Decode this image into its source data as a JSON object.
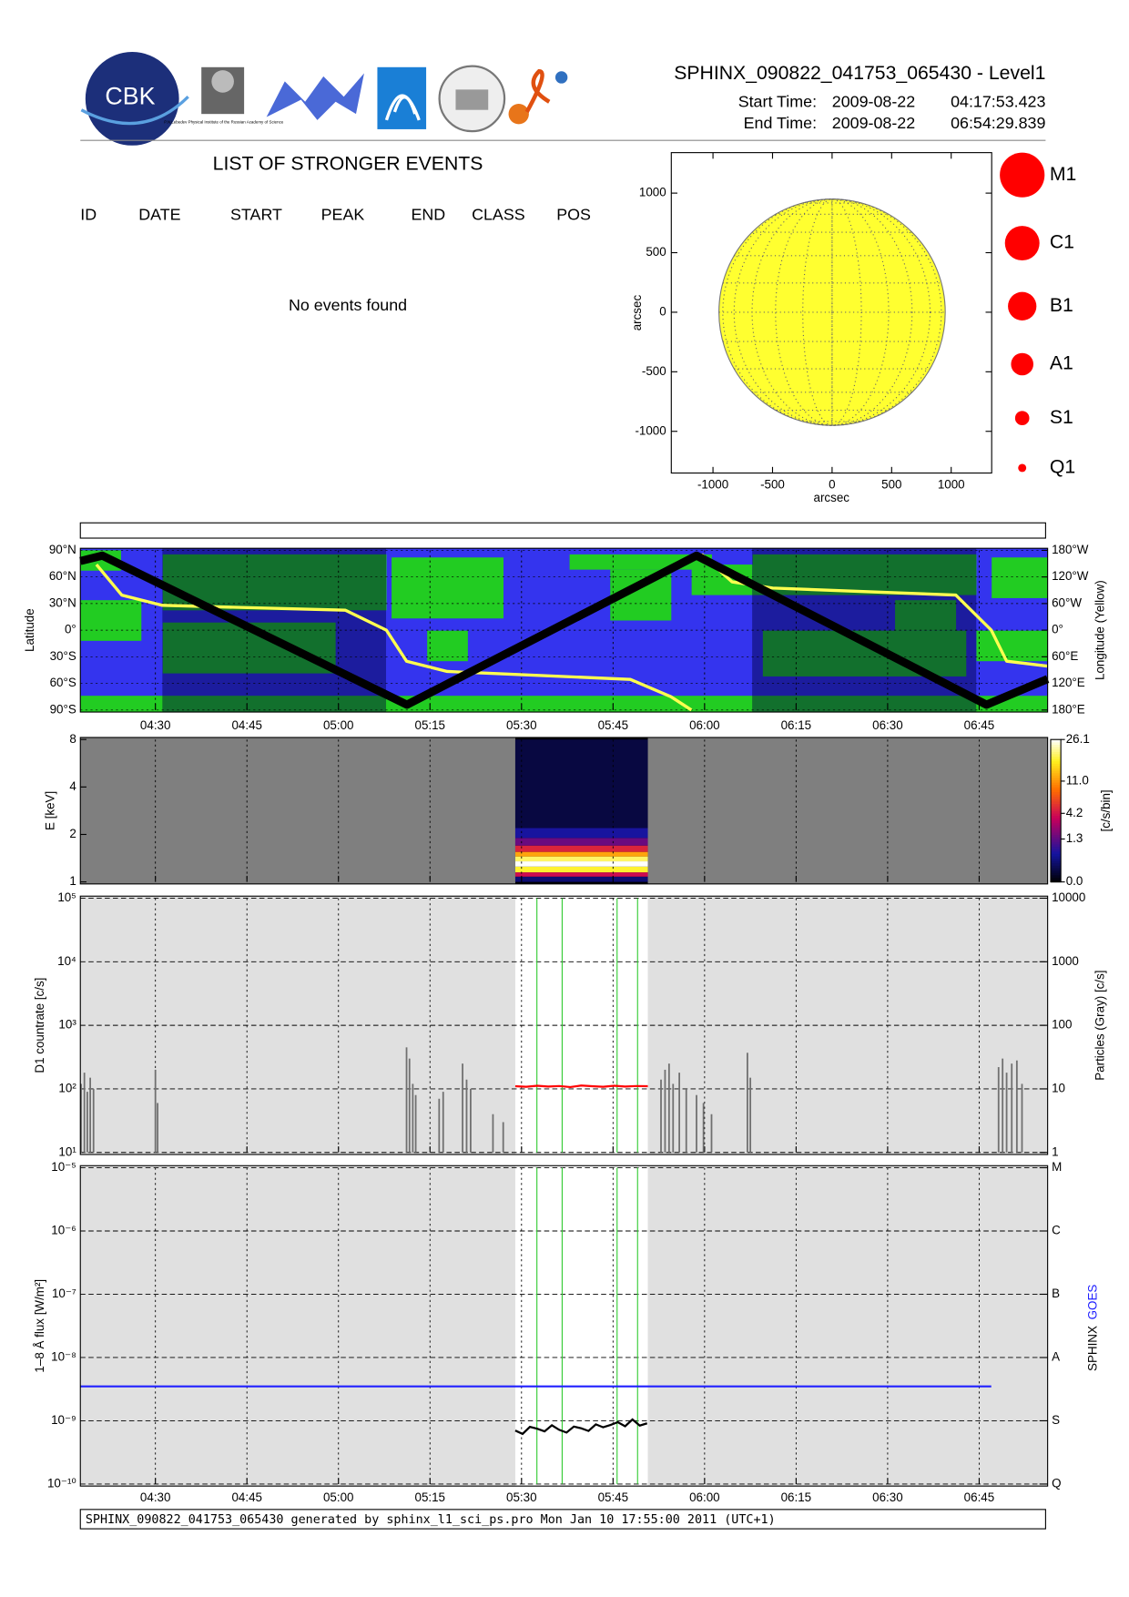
{
  "header": {
    "title": "SPHINX_090822_041753_065430 - Level1",
    "start_label": "Start Time:",
    "start_date": "2009-08-22",
    "start_time": "04:17:53.423",
    "end_label": "End Time:",
    "end_date": "2009-08-22",
    "end_time": "06:54:29.839",
    "logo_text": "CBK",
    "lebedev_caption": "P.N.Lebedev Physical Institute of the Russian Academy of Science"
  },
  "events": {
    "title": "LIST OF STRONGER EVENTS",
    "columns": [
      "ID",
      "DATE",
      "START",
      "PEAK",
      "END",
      "CLASS",
      "POS"
    ],
    "message": "No events found"
  },
  "footer": "SPHINX_090822_041753_065430 generated by sphinx_l1_sci_ps.pro Mon Jan 10 17:55:00 2011 (UTC+1)",
  "chart_data": [
    {
      "type": "solar_disk",
      "xlabel": "arcsec",
      "ylabel": "arcsec",
      "xlim": [
        -1350,
        1340
      ],
      "ylim": [
        -1350,
        1340
      ],
      "xticks": [
        -1000,
        -500,
        0,
        500,
        1000
      ],
      "yticks": [
        -1000,
        -500,
        0,
        500,
        1000
      ],
      "disk_radius": 950,
      "disk_color": "#ffff30",
      "legend": [
        "M1",
        "C1",
        "B1",
        "A1",
        "S1",
        "Q1"
      ],
      "legend_color": "#ff0000"
    },
    {
      "type": "orbit_map",
      "ylabel": "Latitude",
      "y2label": "Longitude (Yellow)",
      "xlim": [
        4.295,
        6.937
      ],
      "xticks": [
        {
          "value": 4.5,
          "label": "04:30"
        },
        {
          "value": 4.75,
          "label": "04:45"
        },
        {
          "value": 5,
          "label": "05:00"
        },
        {
          "value": 5.25,
          "label": "05:15"
        },
        {
          "value": 5.5,
          "label": "05:30"
        },
        {
          "value": 5.75,
          "label": "05:45"
        },
        {
          "value": 6,
          "label": "06:00"
        },
        {
          "value": 6.25,
          "label": "06:15"
        },
        {
          "value": 6.5,
          "label": "06:30"
        },
        {
          "value": 6.75,
          "label": "06:45"
        }
      ],
      "ylim": [
        -90,
        90
      ],
      "yticks": [
        {
          "value": -90,
          "label": "90°S"
        },
        {
          "value": -60,
          "label": "60°S"
        },
        {
          "value": -30,
          "label": "30°S"
        },
        {
          "value": 0,
          "label": "0°"
        },
        {
          "value": 30,
          "label": "30°N"
        },
        {
          "value": 60,
          "label": "60°N"
        },
        {
          "value": 90,
          "label": "90°N"
        }
      ],
      "y2lim": [
        -180,
        180
      ],
      "y2ticks": [
        {
          "value": -180,
          "label": "180°E"
        },
        {
          "value": -120,
          "label": "120°E"
        },
        {
          "value": -60,
          "label": "60°E"
        },
        {
          "value": 0,
          "label": "0°"
        },
        {
          "value": 60,
          "label": "60°W"
        },
        {
          "value": 120,
          "label": "120°W"
        },
        {
          "value": 180,
          "label": "180°W"
        }
      ],
      "shaded_intervals": [
        [
          4.519,
          5.13
        ],
        [
          6.13,
          6.742
        ]
      ],
      "series": [
        {
          "color": "#000000",
          "x": [
            4.295,
            4.355,
            5.187,
            5.978,
            6.77,
            6.937
          ],
          "values": [
            78,
            84,
            -84,
            84,
            -84,
            -55
          ]
        },
        {
          "color": "#ffff50",
          "axis": "y2",
          "x": [
            4.339,
            4.408,
            4.519,
            5.019,
            5.131,
            5.186,
            5.297,
            5.797,
            5.908,
            5.964,
            5.97,
            5.992,
            6.075,
            6.186,
            6.686,
            6.783,
            6.825,
            6.936
          ],
          "values": [
            148,
            79,
            56,
            45,
            0,
            -70,
            -93,
            -111,
            -150,
            -180,
            null,
            171,
            109,
            95,
            79,
            0,
            -70,
            -81
          ]
        }
      ]
    },
    {
      "type": "heatmap",
      "ylabel": "E [keV]",
      "ylog": true,
      "ylim": [
        1,
        8
      ],
      "yticks": [
        1,
        2,
        4,
        8
      ],
      "time_range": [
        5.483,
        5.845
      ],
      "energy_edges": [
        1,
        1.08,
        1.15,
        1.25,
        1.35,
        1.45,
        1.55,
        1.7,
        1.9,
        2.2,
        8
      ],
      "values": [
        0.2,
        4,
        18,
        26,
        20,
        12,
        5,
        1.5,
        0.5,
        0.05
      ],
      "colorbar_label": "[c/s/bin]",
      "clim": [
        0,
        26.1
      ],
      "cticks": [
        {
          "value": 0,
          "label": "0.0"
        },
        1.3,
        4.2,
        {
          "value": 11,
          "label": "11.0"
        },
        26.1
      ]
    },
    {
      "type": "line",
      "ylabel": "D1 countrate [c/s]",
      "y2label": "Particles (Gray) [c/s]",
      "ylog": true,
      "ylim": [
        10,
        100000
      ],
      "yticks": [
        {
          "value": 10,
          "label": "10¹"
        },
        {
          "value": 100,
          "label": "10²"
        },
        {
          "value": 1000,
          "label": "10³"
        },
        {
          "value": 10000,
          "label": "10⁴"
        },
        {
          "value": 100000,
          "label": "10⁵"
        }
      ],
      "y2lim": [
        1,
        10000
      ],
      "y2ticks": [
        1,
        10,
        100,
        1000,
        10000
      ],
      "data_interval": [
        5.483,
        5.845
      ],
      "event_markers": [
        5.542,
        5.611,
        5.761,
        5.817
      ],
      "series": [
        {
          "color": "#ff0000",
          "x": [
            5.483,
            5.513,
            5.543,
            5.573,
            5.603,
            5.633,
            5.663,
            5.693,
            5.723,
            5.753,
            5.783,
            5.813,
            5.845
          ],
          "values": [
            110,
            108,
            112,
            109,
            111,
            107,
            113,
            110,
            108,
            112,
            109,
            111,
            110
          ]
        },
        {
          "color": "#707070",
          "axis": "y2",
          "style": "bar",
          "x": [
            4.297,
            4.306,
            4.314,
            4.322,
            4.331,
            4.5,
            4.506,
            5.186,
            5.194,
            5.203,
            5.211,
            5.275,
            5.286,
            5.339,
            5.35,
            5.361,
            5.422,
            5.45,
            5.881,
            5.892,
            5.903,
            5.914,
            5.931,
            5.95,
            5.978,
            5.997,
            6.019,
            6.117,
            6.125,
            6.803,
            6.814,
            6.825,
            6.839,
            6.853,
            6.867
          ],
          "values": [
            12,
            18,
            9,
            15,
            10,
            20,
            6,
            45,
            30,
            12,
            8,
            7,
            9,
            25,
            14,
            10,
            4,
            3,
            14,
            20,
            25,
            12,
            18,
            10,
            8,
            6,
            4,
            37,
            15,
            22,
            30,
            18,
            25,
            28,
            12
          ]
        }
      ]
    },
    {
      "type": "line",
      "ylabel": "1–8 Å flux [W/m²]",
      "ylog": true,
      "xlim": [
        4.295,
        6.937
      ],
      "xticks": [
        {
          "value": 4.5,
          "label": "04:30"
        },
        {
          "value": 4.75,
          "label": "04:45"
        },
        {
          "value": 5,
          "label": "05:00"
        },
        {
          "value": 5.25,
          "label": "05:15"
        },
        {
          "value": 5.5,
          "label": "05:30"
        },
        {
          "value": 5.75,
          "label": "05:45"
        },
        {
          "value": 6,
          "label": "06:00"
        },
        {
          "value": 6.25,
          "label": "06:15"
        },
        {
          "value": 6.5,
          "label": "06:30"
        },
        {
          "value": 6.75,
          "label": "06:45"
        }
      ],
      "ylim": [
        1e-10,
        1e-05
      ],
      "yticks": [
        {
          "value": 1e-10,
          "label": "10⁻¹⁰"
        },
        {
          "value": 1e-09,
          "label": "10⁻⁹"
        },
        {
          "value": 1e-08,
          "label": "10⁻⁸"
        },
        {
          "value": 1e-07,
          "label": "10⁻⁷"
        },
        {
          "value": 1e-06,
          "label": "10⁻⁶"
        },
        {
          "value": 1e-05,
          "label": "10⁻⁵"
        }
      ],
      "y2lim": [
        1e-10,
        1e-05
      ],
      "y2ticks": [
        {
          "value": 1e-10,
          "label": "Q"
        },
        {
          "value": 1e-09,
          "label": "S"
        },
        {
          "value": 1e-08,
          "label": "A"
        },
        {
          "value": 1e-07,
          "label": "B"
        },
        {
          "value": 1e-06,
          "label": "C"
        },
        {
          "value": 1e-05,
          "label": "M"
        }
      ],
      "data_interval": [
        5.483,
        5.845
      ],
      "event_markers": [
        5.542,
        5.611,
        5.761,
        5.817
      ],
      "series": [
        {
          "name": "SPHINX",
          "color": "#000000",
          "x": [
            5.483,
            5.503,
            5.523,
            5.543,
            5.563,
            5.583,
            5.603,
            5.623,
            5.643,
            5.663,
            5.683,
            5.703,
            5.723,
            5.743,
            5.763,
            5.783,
            5.803,
            5.823,
            5.843
          ],
          "values": [
            7e-10,
            6.2e-10,
            8e-10,
            7.5e-10,
            6.8e-10,
            8.5e-10,
            7.2e-10,
            6.5e-10,
            8.1e-10,
            7.6e-10,
            6.9e-10,
            8.8e-10,
            7.9e-10,
            8.6e-10,
            9.5e-10,
            8.2e-10,
            1.05e-09,
            8.4e-10,
            9.1e-10
          ]
        },
        {
          "name": "GOES",
          "color": "#2020ff",
          "x": [
            4.295,
            6.783
          ],
          "values": [
            3.5e-09,
            3.5e-09
          ]
        }
      ]
    }
  ]
}
